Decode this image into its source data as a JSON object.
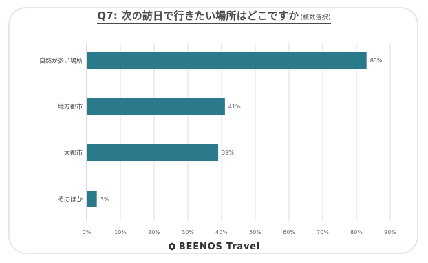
{
  "chart_data": {
    "type": "bar",
    "orientation": "horizontal",
    "title": "Q7: 次の訪日で行きたい場所はどこですか",
    "title_note": "(複数選択)",
    "categories": [
      "自然が多い場所",
      "地方都市",
      "大都市",
      "そのほか"
    ],
    "values": [
      83,
      41,
      39,
      3
    ],
    "value_suffix": "%",
    "xlim": [
      0,
      90
    ],
    "x_ticks": [
      0,
      10,
      20,
      30,
      40,
      50,
      60,
      70,
      80,
      90
    ],
    "tick_suffix": "%",
    "grid": true,
    "bar_color": "#2a7a8c",
    "grid_color": "#dcdcdc"
  },
  "brand": {
    "name": "BEENOS Travel",
    "logo": "hexagon-logo-icon"
  }
}
